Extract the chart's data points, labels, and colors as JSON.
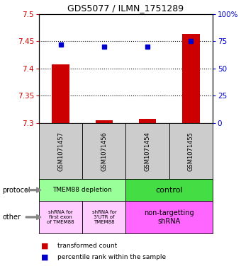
{
  "title": "GDS5077 / ILMN_1751289",
  "samples": [
    "GSM1071457",
    "GSM1071456",
    "GSM1071454",
    "GSM1071455"
  ],
  "bar_bottoms": [
    7.3,
    7.3,
    7.3,
    7.3
  ],
  "bar_tops": [
    7.407,
    7.305,
    7.308,
    7.463
  ],
  "percentile_ranks": [
    72,
    70,
    70,
    75
  ],
  "ylim": [
    7.3,
    7.5
  ],
  "yticks_left": [
    7.3,
    7.35,
    7.4,
    7.45,
    7.5
  ],
  "ytick_labels_left": [
    "7.3",
    "7.35",
    "7.4",
    "7.45",
    "7.5"
  ],
  "yticks_right": [
    0,
    25,
    50,
    75,
    100
  ],
  "ytick_labels_right": [
    "0",
    "25",
    "50",
    "75",
    "100%"
  ],
  "bar_color": "#cc0000",
  "dot_color": "#0000cc",
  "protocol_color_left": "#99ff99",
  "protocol_color_right": "#44dd44",
  "other_color_left": "#ffccff",
  "other_color_right": "#ff66ff",
  "protocol_labels": [
    "TMEM88 depletion",
    "control"
  ],
  "other_labels_col1": "shRNA for\nfirst exon\nof TMEM88",
  "other_labels_col2": "shRNA for\n3'UTR of\nTMEM88",
  "other_labels_col3": "non-targetting\nshRNA",
  "legend_red_label": "transformed count",
  "legend_blue_label": "percentile rank within the sample",
  "background_color": "#ffffff",
  "tick_color_left": "#cc0000",
  "tick_color_right": "#0000cc"
}
